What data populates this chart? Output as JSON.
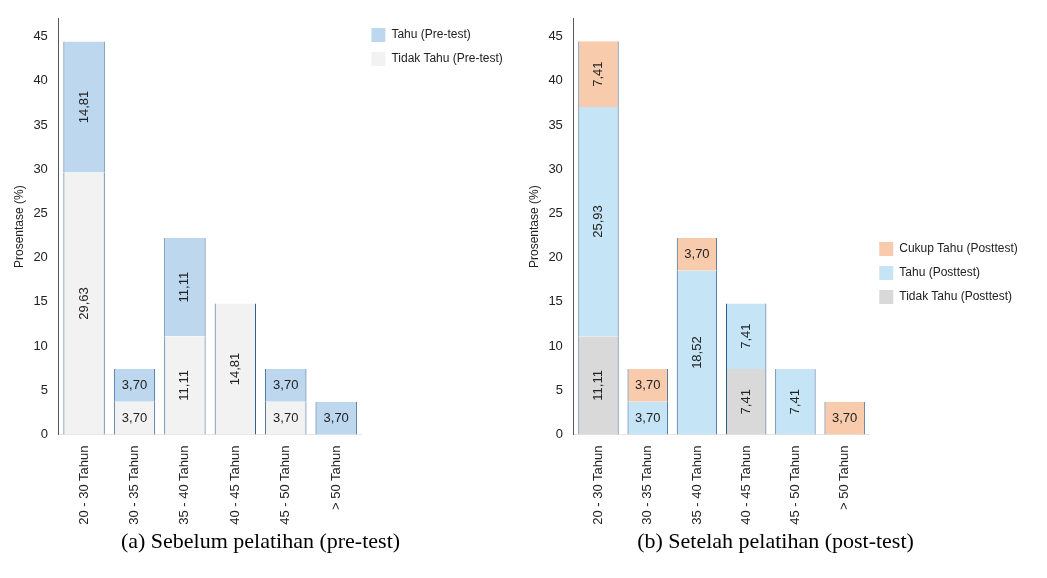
{
  "chart_data": [
    {
      "type": "bar",
      "stacked": true,
      "ylabel": "Prosentase (%)",
      "categories": [
        "20 - 30 Tahun",
        "30 - 35 Tahun",
        "35 - 40 Tahun",
        "40 - 45 Tahun",
        "45 - 50 Tahun",
        "> 50 Tahun"
      ],
      "ylim": [
        0,
        47
      ],
      "yticks": [
        0,
        5,
        10,
        15,
        20,
        25,
        30,
        35,
        40,
        45
      ],
      "legend": "top right",
      "annotations": [
        "(a) Sebelum pelatihan (pre-test)"
      ],
      "series": [
        {
          "name": "Tidak Tahu (Pre-test)",
          "color": "#f2f2f2",
          "values": [
            29.63,
            3.7,
            11.11,
            14.81,
            3.7,
            null
          ],
          "value_labels": [
            "29,63",
            "3,70",
            "11,11",
            "14,81",
            "3,70",
            null
          ]
        },
        {
          "name": "Tahu (Pre-test)",
          "color": "#bdd7ee",
          "values": [
            14.81,
            3.7,
            11.11,
            null,
            3.7,
            3.7
          ],
          "value_labels": [
            "14,81",
            "3,70",
            "11,11",
            null,
            "3,70",
            "3,70"
          ]
        }
      ]
    },
    {
      "type": "bar",
      "stacked": true,
      "ylabel": "Prosentase (%)",
      "categories": [
        "20 - 30 Tahun",
        "30 - 35 Tahun",
        "35 - 40 Tahun",
        "40 - 45 Tahun",
        "45 - 50 Tahun",
        "> 50 Tahun"
      ],
      "ylim": [
        0,
        47
      ],
      "yticks": [
        0,
        5,
        10,
        15,
        20,
        25,
        30,
        35,
        40,
        45
      ],
      "legend": "right",
      "annotations": [
        "(b) Setelah pelatihan (post-test)"
      ],
      "series": [
        {
          "name": "Tidak Tahu (Posttest)",
          "color": "#d9d9d9",
          "values": [
            11.11,
            null,
            null,
            7.41,
            null,
            null
          ],
          "value_labels": [
            "11,11",
            null,
            null,
            "7,41",
            null,
            null
          ]
        },
        {
          "name": "Tahu (Posttest)",
          "color": "#c5e4f5",
          "values": [
            25.93,
            3.7,
            18.52,
            7.41,
            7.41,
            null
          ],
          "value_labels": [
            "25,93",
            "3,70",
            "18,52",
            "7,41",
            "7,41",
            null
          ]
        },
        {
          "name": "Cukup Tahu (Posttest)",
          "color": "#f8cbad",
          "values": [
            7.41,
            3.7,
            3.7,
            null,
            null,
            3.7
          ],
          "value_labels": [
            "7,41",
            "3,70",
            "3,70",
            null,
            null,
            "3,70"
          ]
        }
      ]
    }
  ]
}
